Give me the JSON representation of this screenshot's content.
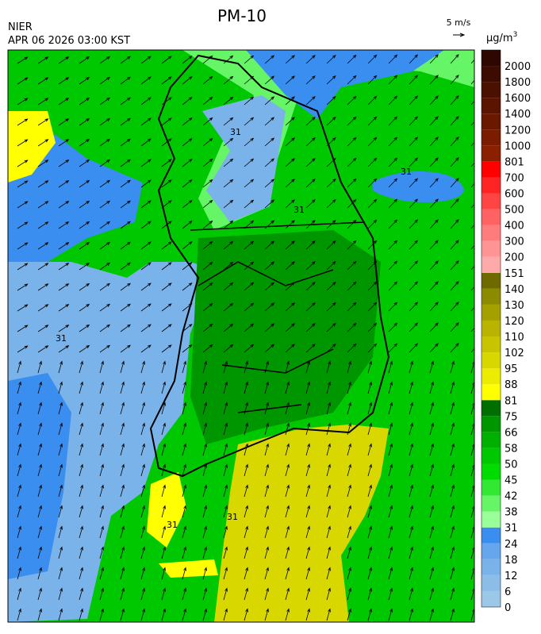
{
  "header": {
    "title": "PM-10",
    "agency": "NIER",
    "datetime": "APR 06 2026 03:00 KST",
    "wind_scale": "5 m/s",
    "unit": "μg/m",
    "unit_power": "3"
  },
  "map": {
    "contour_labels": [
      "31",
      "31",
      "31",
      "31",
      "31",
      "31"
    ]
  },
  "colorbar": {
    "levels": [
      {
        "value": 0,
        "color": "#9cc8e8"
      },
      {
        "value": 6,
        "color": "#8cbde8"
      },
      {
        "value": 12,
        "color": "#7ab2ea"
      },
      {
        "value": 18,
        "color": "#66a6ec"
      },
      {
        "value": 24,
        "color": "#3a8ef0"
      },
      {
        "value": 31,
        "color": "#99ff99"
      },
      {
        "value": 38,
        "color": "#66f566"
      },
      {
        "value": 42,
        "color": "#33e833"
      },
      {
        "value": 45,
        "color": "#00dc00"
      },
      {
        "value": 50,
        "color": "#00c800"
      },
      {
        "value": 58,
        "color": "#00b000"
      },
      {
        "value": 66,
        "color": "#009600"
      },
      {
        "value": 75,
        "color": "#006e00"
      },
      {
        "value": 81,
        "color": "#ffff00"
      },
      {
        "value": 88,
        "color": "#ecec00"
      },
      {
        "value": 95,
        "color": "#d8d800"
      },
      {
        "value": 102,
        "color": "#c8c400"
      },
      {
        "value": 110,
        "color": "#b8b400"
      },
      {
        "value": 120,
        "color": "#a4a000"
      },
      {
        "value": 130,
        "color": "#8c8a00"
      },
      {
        "value": 140,
        "color": "#6e6a00"
      },
      {
        "value": 151,
        "color": "#ffaaaa"
      },
      {
        "value": 200,
        "color": "#ff9494"
      },
      {
        "value": 300,
        "color": "#ff7c7c"
      },
      {
        "value": 400,
        "color": "#ff6262"
      },
      {
        "value": 500,
        "color": "#ff4444"
      },
      {
        "value": 600,
        "color": "#ff2424"
      },
      {
        "value": 700,
        "color": "#ff0000"
      },
      {
        "value": 801,
        "color": "#8a2000"
      },
      {
        "value": 1000,
        "color": "#7a1c00"
      },
      {
        "value": 1200,
        "color": "#6a1800"
      },
      {
        "value": 1400,
        "color": "#5a1400"
      },
      {
        "value": 1600,
        "color": "#4a1000"
      },
      {
        "value": 1800,
        "color": "#3c0c00"
      },
      {
        "value": 2000,
        "color": "#2e0800"
      }
    ]
  }
}
